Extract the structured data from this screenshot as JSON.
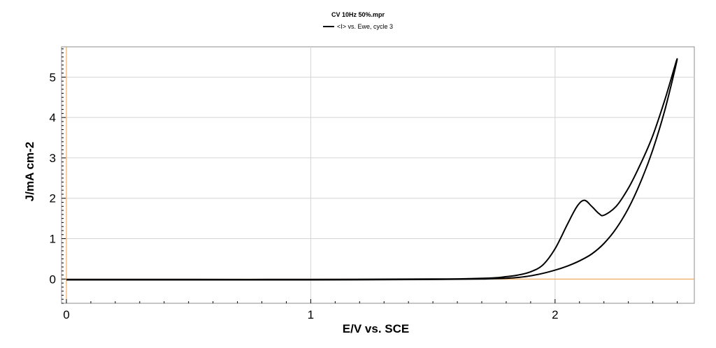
{
  "chart_data": {
    "type": "line",
    "title": "CV 10Hz 50%.mpr",
    "xlabel": "E/V vs. SCE",
    "ylabel": "J/mA cm-2",
    "xlim": [
      -0.02,
      2.57
    ],
    "ylim": [
      -0.6,
      5.75
    ],
    "x_ticks": [
      0,
      1,
      2
    ],
    "y_ticks": [
      0,
      1,
      2,
      3,
      4,
      5
    ],
    "grid": true,
    "zero_lines_color": "#f0a040",
    "legend_position": "top-center",
    "series": [
      {
        "name": "<I> vs. Ewe, cycle 3",
        "color": "#000000",
        "x": [
          0.0,
          0.5,
          1.0,
          1.5,
          1.65,
          1.75,
          1.8,
          1.85,
          1.9,
          1.95,
          2.0,
          2.05,
          2.09,
          2.12,
          2.15,
          2.18,
          2.2,
          2.25,
          2.3,
          2.35,
          2.4,
          2.45,
          2.5,
          2.45,
          2.4,
          2.35,
          2.3,
          2.25,
          2.2,
          2.15,
          2.1,
          2.05,
          2.0,
          1.95,
          1.9,
          1.85,
          1.8,
          1.75,
          1.7,
          1.5,
          1.0,
          0.5,
          0.0
        ],
        "y": [
          -0.01,
          -0.01,
          -0.01,
          0.0,
          0.01,
          0.03,
          0.06,
          0.1,
          0.18,
          0.35,
          0.75,
          1.35,
          1.8,
          1.95,
          1.8,
          1.62,
          1.58,
          1.8,
          2.25,
          2.85,
          3.55,
          4.45,
          5.45,
          4.2,
          3.2,
          2.4,
          1.75,
          1.25,
          0.88,
          0.62,
          0.45,
          0.32,
          0.22,
          0.14,
          0.08,
          0.04,
          0.02,
          0.01,
          0.0,
          -0.01,
          -0.02,
          -0.02,
          -0.02
        ]
      }
    ]
  }
}
